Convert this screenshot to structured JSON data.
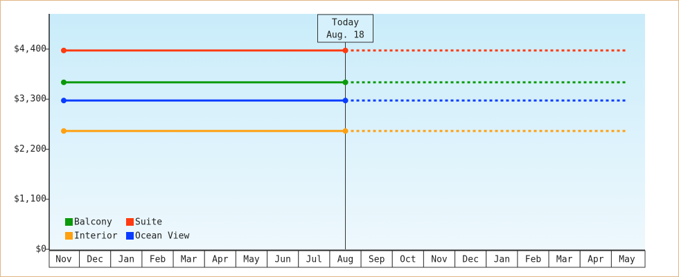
{
  "chart_data": {
    "type": "line",
    "categories": [
      "Nov",
      "Dec",
      "Jan",
      "Feb",
      "Mar",
      "Apr",
      "May",
      "Jun",
      "Jul",
      "Aug",
      "Sep",
      "Oct",
      "Nov",
      "Dec",
      "Jan",
      "Feb",
      "Mar",
      "Apr",
      "May"
    ],
    "series": [
      {
        "name": "Suite",
        "color": "#ff3a10",
        "values": [
          4370,
          4370,
          4370,
          4370,
          4370,
          4370,
          4370,
          4370,
          4370,
          4370,
          4370,
          4370,
          4370,
          4370,
          4370,
          4370,
          4370,
          4370,
          4370
        ]
      },
      {
        "name": "Balcony",
        "color": "#0a9a0a",
        "values": [
          3670,
          3670,
          3670,
          3670,
          3670,
          3670,
          3670,
          3670,
          3670,
          3670,
          3670,
          3670,
          3670,
          3670,
          3670,
          3670,
          3670,
          3670,
          3670
        ]
      },
      {
        "name": "Ocean View",
        "color": "#0a3cff",
        "values": [
          3270,
          3270,
          3270,
          3270,
          3270,
          3270,
          3270,
          3270,
          3270,
          3270,
          3270,
          3270,
          3270,
          3270,
          3270,
          3270,
          3270,
          3270,
          3270
        ]
      },
      {
        "name": "Interior",
        "color": "#ffa010",
        "values": [
          2600,
          2600,
          2600,
          2600,
          2600,
          2600,
          2600,
          2600,
          2600,
          2600,
          2600,
          2600,
          2600,
          2600,
          2600,
          2600,
          2600,
          2600,
          2600
        ]
      }
    ],
    "legend_order": [
      "Balcony",
      "Suite",
      "Interior",
      "Ocean View"
    ],
    "ylim": [
      0,
      5175
    ],
    "yticks": [
      {
        "value": 0,
        "label": "$0"
      },
      {
        "value": 1100,
        "label": "$1,100"
      },
      {
        "value": 2200,
        "label": "$2,200"
      },
      {
        "value": 3300,
        "label": "$3,300"
      },
      {
        "value": 4400,
        "label": "$4,400"
      }
    ],
    "today": {
      "title": "Today",
      "date": "Aug. 18",
      "category": "Aug"
    },
    "legend": "bottom-left"
  }
}
